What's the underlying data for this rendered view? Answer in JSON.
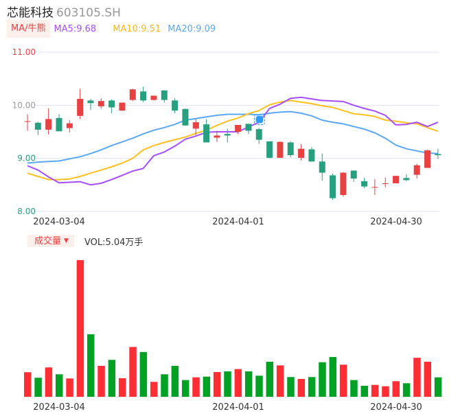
{
  "header": {
    "name": "芯能科技",
    "code": "603105.SH"
  },
  "ma_legend": {
    "tab": "MA/牛熊",
    "ma5": "MA5:9.68",
    "ma10": "MA10:9.51",
    "ma20": "MA20:9.09"
  },
  "volume_legend": {
    "tab": "成交量",
    "tab_icon": "caret-down-icon",
    "value": "VOL:5.04万手"
  },
  "colors": {
    "up": "#e84142",
    "down": "#26a07f",
    "vol_up": "#ff2e35",
    "vol_down": "#00a125",
    "ma5": "#a64dff",
    "ma10": "#ffc01e",
    "ma20": "#5aa8f5",
    "grid": "#e1e5f0",
    "axis_up": "#f04040",
    "axis_down": "#26a07f"
  },
  "chart_data": [
    {
      "type": "candlestick",
      "ylim": [
        8,
        11
      ],
      "y_ticks": [
        "11.00",
        "10.00",
        "9.00",
        "8.00"
      ],
      "x_tick_labels": [
        "2024-03-04",
        "2024-04-01",
        "2024-04-30"
      ],
      "grid": true,
      "ohlc": [
        [
          9.7,
          9.83,
          9.52,
          9.7
        ],
        [
          9.67,
          9.69,
          9.44,
          9.54
        ],
        [
          9.54,
          9.94,
          9.45,
          9.74
        ],
        [
          9.76,
          9.83,
          9.51,
          9.51
        ],
        [
          9.57,
          9.72,
          9.49,
          9.66
        ],
        [
          9.8,
          10.31,
          9.74,
          10.12
        ],
        [
          10.09,
          10.12,
          9.91,
          10.04
        ],
        [
          9.98,
          10.13,
          9.94,
          10.08
        ],
        [
          10.09,
          10.11,
          9.85,
          9.96
        ],
        [
          9.9,
          10.05,
          9.89,
          10.05
        ],
        [
          10.1,
          10.31,
          10.08,
          10.3
        ],
        [
          10.26,
          10.35,
          10.06,
          10.09
        ],
        [
          10.1,
          10.18,
          10.09,
          10.18
        ],
        [
          10.28,
          10.28,
          10.05,
          10.1
        ],
        [
          10.09,
          10.13,
          9.85,
          9.9
        ],
        [
          9.93,
          9.94,
          9.61,
          9.62
        ],
        [
          9.56,
          9.74,
          9.44,
          9.68
        ],
        [
          9.64,
          9.74,
          9.3,
          9.3
        ],
        [
          9.39,
          9.52,
          9.31,
          9.43
        ],
        [
          9.46,
          9.56,
          9.3,
          9.43
        ],
        [
          9.5,
          9.63,
          9.46,
          9.63
        ],
        [
          9.65,
          9.65,
          9.46,
          9.52
        ],
        [
          9.55,
          9.57,
          9.27,
          9.35
        ],
        [
          9.32,
          9.32,
          9.0,
          9.01
        ],
        [
          9.01,
          9.32,
          9.01,
          9.31
        ],
        [
          9.3,
          9.32,
          9.02,
          9.06
        ],
        [
          9.01,
          9.27,
          8.96,
          9.18
        ],
        [
          9.17,
          9.21,
          8.94,
          8.94
        ],
        [
          8.94,
          9.09,
          8.58,
          8.73
        ],
        [
          8.68,
          8.71,
          8.22,
          8.25
        ],
        [
          8.31,
          8.74,
          8.28,
          8.73
        ],
        [
          8.77,
          8.77,
          8.56,
          8.62
        ],
        [
          8.57,
          8.63,
          8.44,
          8.47
        ],
        [
          8.45,
          8.61,
          8.31,
          8.46
        ],
        [
          8.52,
          8.64,
          8.45,
          8.53
        ],
        [
          8.53,
          8.67,
          8.53,
          8.67
        ],
        [
          8.63,
          8.7,
          8.57,
          8.59
        ],
        [
          8.69,
          8.9,
          8.62,
          8.87
        ],
        [
          8.82,
          9.16,
          8.82,
          9.15
        ],
        [
          9.08,
          9.18,
          8.99,
          9.06
        ]
      ],
      "ma5": [
        8.86,
        8.78,
        8.65,
        8.54,
        8.55,
        8.56,
        8.5,
        8.53,
        8.6,
        8.68,
        8.76,
        8.81,
        9.05,
        9.12,
        9.23,
        9.36,
        9.42,
        9.49,
        9.5,
        9.5,
        9.5,
        9.59,
        9.68,
        9.94,
        10.02,
        10.13,
        10.15,
        10.12,
        10.09,
        10.08,
        10.07,
        10.0,
        9.94,
        9.89,
        9.81,
        9.63,
        9.64,
        9.68,
        9.6,
        9.68
      ],
      "ma10": [
        8.72,
        8.66,
        8.6,
        8.6,
        8.61,
        8.66,
        8.72,
        8.78,
        8.84,
        8.91,
        9.0,
        9.16,
        9.24,
        9.3,
        9.35,
        9.4,
        9.47,
        9.53,
        9.62,
        9.7,
        9.76,
        9.84,
        9.9,
        10.01,
        10.06,
        10.09,
        10.06,
        10.03,
        9.99,
        9.96,
        9.9,
        9.84,
        9.82,
        9.79,
        9.72,
        9.7,
        9.67,
        9.65,
        9.58,
        9.51
      ],
      "ma20": [
        8.91,
        8.93,
        8.94,
        8.95,
        8.99,
        9.03,
        9.09,
        9.16,
        9.24,
        9.31,
        9.38,
        9.46,
        9.53,
        9.58,
        9.64,
        9.72,
        9.75,
        9.78,
        9.81,
        9.83,
        9.83,
        9.83,
        9.82,
        9.85,
        9.87,
        9.88,
        9.85,
        9.8,
        9.72,
        9.68,
        9.65,
        9.6,
        9.55,
        9.48,
        9.38,
        9.25,
        9.18,
        9.14,
        9.1,
        9.09
      ]
    },
    {
      "type": "bar",
      "unit": "万手",
      "x_tick_labels": [
        "2024-03-04",
        "2024-04-01",
        "2024-04-30"
      ],
      "values": [
        6.36,
        4.93,
        7.6,
        5.82,
        4.75,
        35.4,
        16.2,
        8.01,
        9.56,
        4.81,
        12.9,
        11.6,
        3.86,
        5.82,
        8.01,
        4.33,
        5.04,
        5.22,
        6.41,
        6.59,
        7.17,
        6.59,
        5.46,
        9.08,
        8.13,
        5.11,
        4.63,
        5.11,
        8.95,
        10.3,
        8.31,
        4.33,
        2.85,
        3.08,
        2.72,
        4.04,
        3.51,
        10.1,
        9.08,
        5.04
      ]
    }
  ]
}
